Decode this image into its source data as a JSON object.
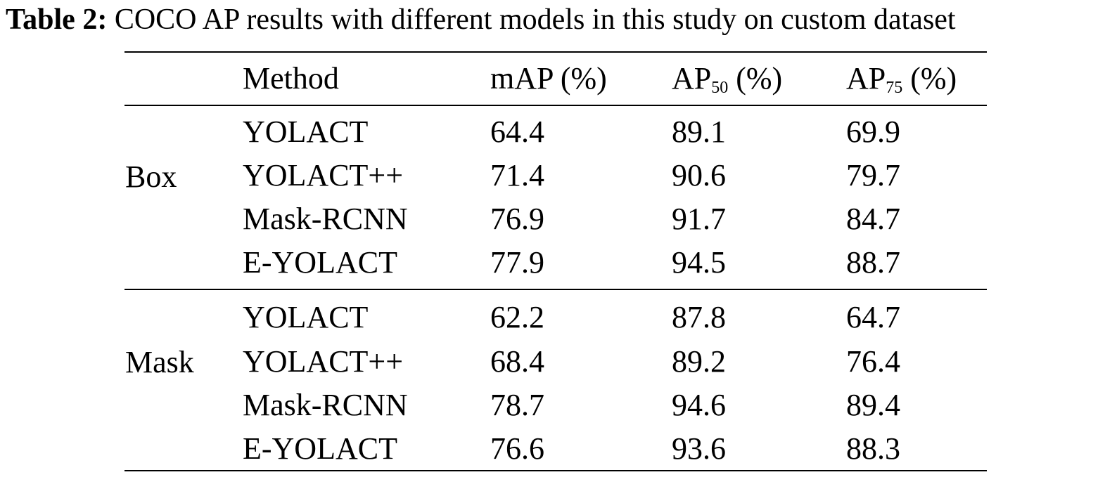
{
  "caption": {
    "label": "Table 2:",
    "text": "COCO AP results with different models in this study on custom dataset"
  },
  "header": {
    "method": "Method",
    "map": "mAP (%)",
    "ap50_base": "AP",
    "ap50_sub": "50",
    "ap50_unit": " (%)",
    "ap75_base": "AP",
    "ap75_sub": "75",
    "ap75_unit": " (%)"
  },
  "groups": [
    {
      "name": "Box",
      "rows": [
        {
          "method": "YOLACT",
          "map": "64.4",
          "ap50": "89.1",
          "ap75": "69.9"
        },
        {
          "method": "YOLACT++",
          "map": "71.4",
          "ap50": "90.6",
          "ap75": "79.7"
        },
        {
          "method": "Mask-RCNN",
          "map": "76.9",
          "ap50": "91.7",
          "ap75": "84.7"
        },
        {
          "method": "E-YOLACT",
          "map": "77.9",
          "ap50": "94.5",
          "ap75": "88.7"
        }
      ]
    },
    {
      "name": "Mask",
      "rows": [
        {
          "method": "YOLACT",
          "map": "62.2",
          "ap50": "87.8",
          "ap75": "64.7"
        },
        {
          "method": "YOLACT++",
          "map": "68.4",
          "ap50": "89.2",
          "ap75": "76.4"
        },
        {
          "method": "Mask-RCNN",
          "map": "78.7",
          "ap50": "94.6",
          "ap75": "89.4"
        },
        {
          "method": "E-YOLACT",
          "map": "76.6",
          "ap50": "93.6",
          "ap75": "88.3"
        }
      ]
    }
  ]
}
